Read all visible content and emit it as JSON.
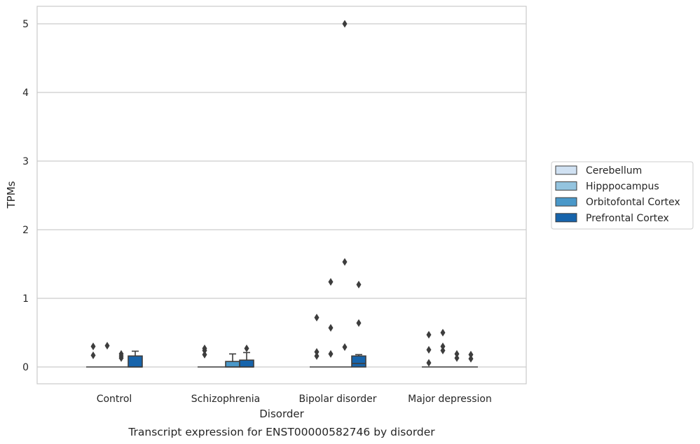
{
  "caption": "Transcript expression for ENST00000582746 by disorder",
  "chart_data": {
    "type": "box",
    "xlabel": "Disorder",
    "ylabel": "TPMs",
    "ylim": [
      -0.25,
      5.25
    ],
    "yticks": [
      0,
      1,
      2,
      3,
      4,
      5
    ],
    "grid": "horizontal",
    "legend_placement": "right",
    "categories": [
      "Control",
      "Schizophrenia",
      "Bipolar disorder",
      "Major depression"
    ],
    "series": [
      {
        "name": "Cerebellum",
        "color": "#d0e1f2",
        "boxes": [
          {
            "q1": 0,
            "median": 0,
            "q3": 0,
            "whisker_low": 0,
            "whisker_high": 0,
            "outliers": [
              0.17,
              0.3
            ]
          },
          {
            "q1": 0,
            "median": 0,
            "q3": 0,
            "whisker_low": 0,
            "whisker_high": 0,
            "outliers": [
              0.18,
              0.24,
              0.27
            ]
          },
          {
            "q1": 0,
            "median": 0,
            "q3": 0,
            "whisker_low": 0,
            "whisker_high": 0,
            "outliers": [
              0.16,
              0.22,
              0.72
            ]
          },
          {
            "q1": 0,
            "median": 0,
            "q3": 0,
            "whisker_low": 0,
            "whisker_high": 0,
            "outliers": [
              0.06,
              0.25,
              0.47
            ]
          }
        ]
      },
      {
        "name": "Hipppocampus",
        "color": "#94c4df",
        "boxes": [
          {
            "q1": 0,
            "median": 0,
            "q3": 0,
            "whisker_low": 0,
            "whisker_high": 0,
            "outliers": [
              0.31
            ]
          },
          {
            "q1": 0,
            "median": 0,
            "q3": 0,
            "whisker_low": 0,
            "whisker_high": 0,
            "outliers": []
          },
          {
            "q1": 0,
            "median": 0,
            "q3": 0,
            "whisker_low": 0,
            "whisker_high": 0,
            "outliers": [
              0.19,
              0.57,
              1.24
            ]
          },
          {
            "q1": 0,
            "median": 0,
            "q3": 0,
            "whisker_low": 0,
            "whisker_high": 0,
            "outliers": [
              0.24,
              0.3,
              0.5
            ]
          }
        ]
      },
      {
        "name": "Orbitofontal Cortex",
        "color": "#4a98c9",
        "boxes": [
          {
            "q1": 0,
            "median": 0,
            "q3": 0,
            "whisker_low": 0,
            "whisker_high": 0,
            "outliers": [
              0.13,
              0.16,
              0.19
            ]
          },
          {
            "q1": 0,
            "median": 0,
            "q3": 0.08,
            "whisker_low": 0,
            "whisker_high": 0.19,
            "outliers": []
          },
          {
            "q1": 0,
            "median": 0,
            "q3": 0,
            "whisker_low": 0,
            "whisker_high": 0,
            "outliers": [
              0.29,
              1.53,
              5.0
            ]
          },
          {
            "q1": 0,
            "median": 0,
            "q3": 0,
            "whisker_low": 0,
            "whisker_high": 0,
            "outliers": [
              0.13,
              0.19
            ]
          }
        ]
      },
      {
        "name": "Prefrontal Cortex",
        "color": "#1764ab",
        "boxes": [
          {
            "q1": 0,
            "median": 0,
            "q3": 0.16,
            "whisker_low": 0,
            "whisker_high": 0.23,
            "outliers": []
          },
          {
            "q1": 0,
            "median": 0,
            "q3": 0.1,
            "whisker_low": 0,
            "whisker_high": 0.21,
            "outliers": [
              0.27
            ]
          },
          {
            "q1": 0,
            "median": 0.05,
            "q3": 0.16,
            "whisker_low": 0,
            "whisker_high": 0.18,
            "outliers": [
              0.64,
              1.2
            ]
          },
          {
            "q1": 0,
            "median": 0,
            "q3": 0,
            "whisker_low": 0,
            "whisker_high": 0,
            "outliers": [
              0.12,
              0.18
            ]
          }
        ]
      }
    ]
  }
}
